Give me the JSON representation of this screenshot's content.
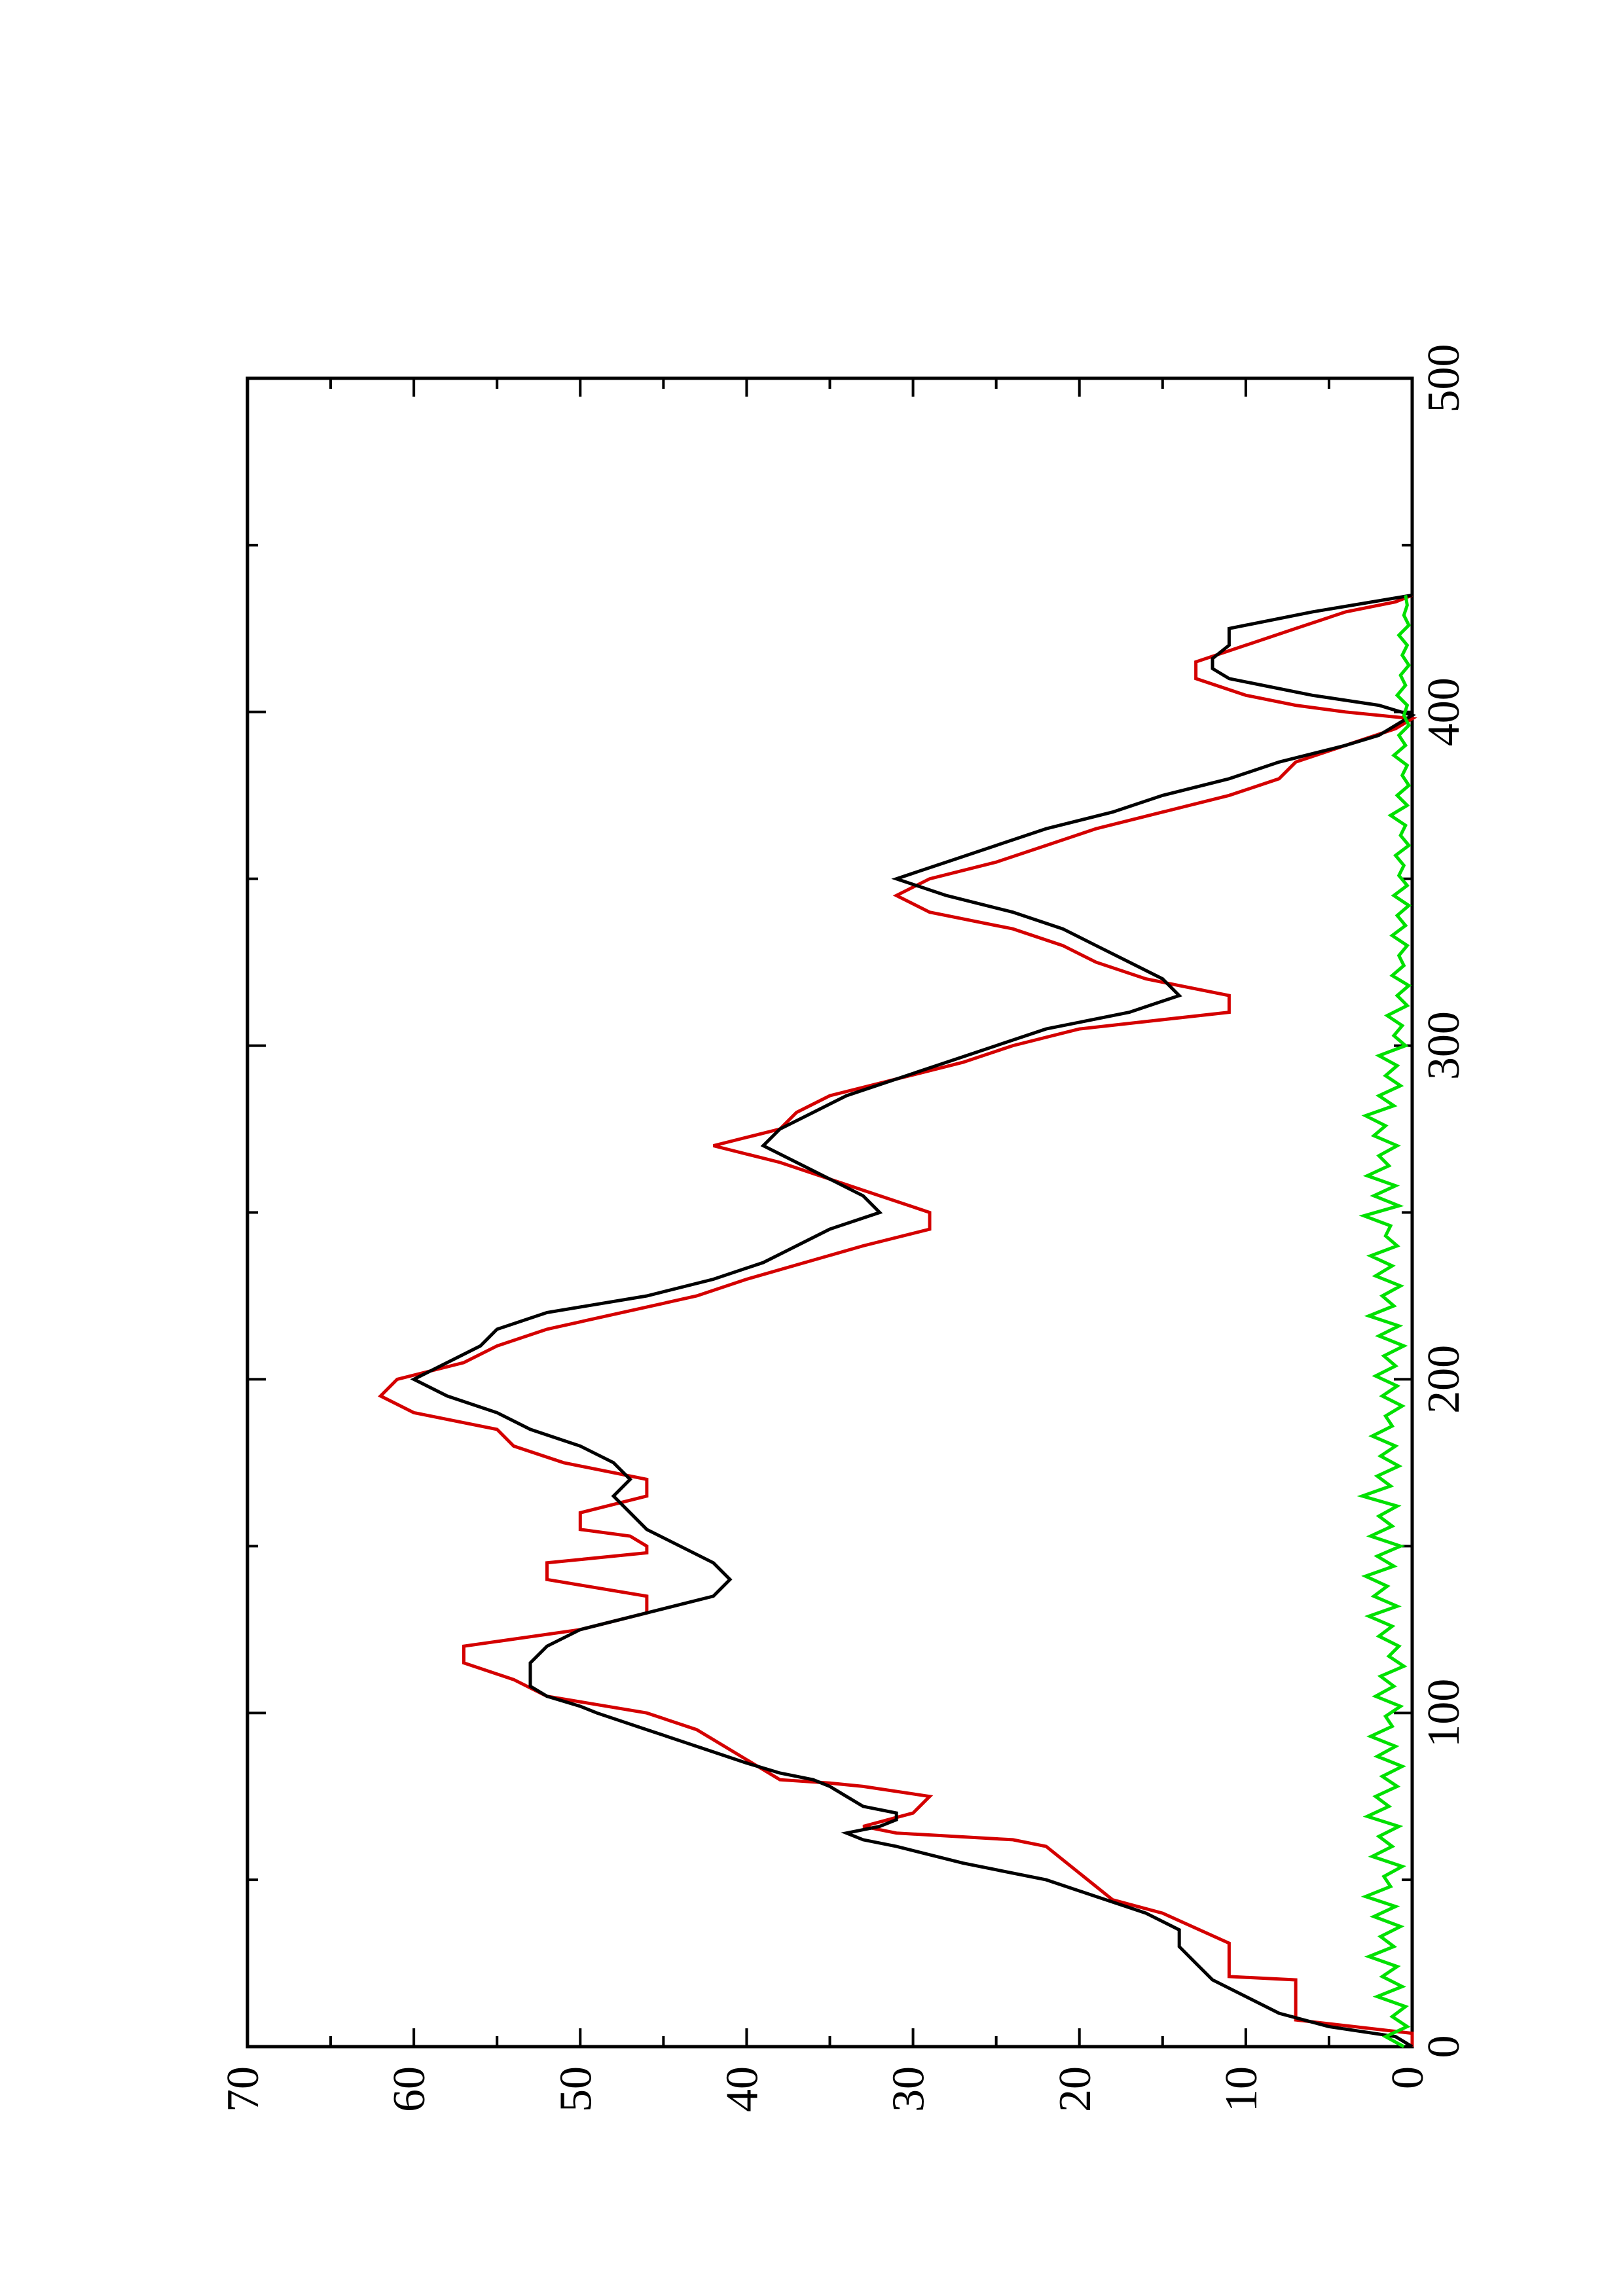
{
  "chart_data": {
    "type": "line",
    "title": "",
    "xlabel": "",
    "ylabel": "",
    "orientation": "rotated 90 degrees counter-clockwise (landscape plot on portrait page)",
    "xlim": [
      0,
      500
    ],
    "ylim": [
      0,
      70
    ],
    "x_ticks": [
      "0",
      "100",
      "200",
      "300",
      "400",
      "500"
    ],
    "x_minor_step": 50,
    "y_ticks": [
      "0",
      "10",
      "20",
      "30",
      "40",
      "50",
      "60",
      "70"
    ],
    "y_minor_step": 5,
    "grid": false,
    "legend": "none",
    "series": [
      {
        "color": "#d40000",
        "style": "step",
        "x": [
          0,
          4,
          8,
          10,
          20,
          21,
          30,
          31,
          40,
          44,
          60,
          62,
          64,
          66,
          70,
          75,
          78,
          79,
          80,
          95,
          100,
          105,
          110,
          115,
          120,
          125,
          130,
          135,
          140,
          145,
          148,
          150,
          153,
          155,
          160,
          165,
          170,
          175,
          180,
          185,
          190,
          195,
          200,
          205,
          210,
          215,
          225,
          230,
          240,
          245,
          250,
          255,
          260,
          265,
          270,
          275,
          280,
          285,
          290,
          295,
          300,
          305,
          310,
          315,
          320,
          325,
          330,
          335,
          340,
          345,
          350,
          355,
          360,
          365,
          370,
          375,
          380,
          385,
          390,
          395,
          398,
          400,
          402,
          405,
          410,
          415,
          420,
          425,
          430,
          433,
          435
        ],
        "y": [
          0,
          0,
          7,
          7,
          7,
          11,
          11,
          11,
          15,
          18,
          22,
          24,
          31,
          33,
          30,
          29,
          33,
          35,
          38,
          43,
          46,
          52,
          54,
          57,
          57,
          50,
          46,
          46,
          52,
          52,
          46,
          46,
          47,
          50,
          50,
          46,
          46,
          51,
          54,
          55,
          60,
          62,
          61,
          57,
          55,
          52,
          43,
          40,
          33,
          29,
          29,
          32,
          35,
          38,
          42,
          38,
          37,
          35,
          31,
          27,
          24,
          20,
          11,
          11,
          16,
          19,
          21,
          24,
          29,
          31,
          29,
          25,
          22,
          19,
          15,
          11,
          8,
          7,
          4,
          1,
          0,
          4,
          7,
          10,
          13,
          13,
          10,
          7,
          4,
          1,
          0
        ]
      },
      {
        "color": "#000000",
        "style": "line",
        "x": [
          0,
          3,
          6,
          10,
          15,
          20,
          25,
          30,
          35,
          40,
          45,
          50,
          55,
          60,
          62,
          64,
          66,
          68,
          70,
          72,
          75,
          78,
          80,
          82,
          85,
          90,
          95,
          100,
          102,
          105,
          108,
          110,
          115,
          120,
          125,
          130,
          135,
          140,
          145,
          150,
          155,
          160,
          165,
          170,
          175,
          180,
          185,
          190,
          195,
          200,
          205,
          210,
          215,
          220,
          225,
          230,
          235,
          240,
          245,
          250,
          255,
          260,
          265,
          270,
          275,
          280,
          285,
          290,
          295,
          300,
          305,
          310,
          315,
          320,
          325,
          330,
          335,
          340,
          345,
          350,
          355,
          360,
          365,
          370,
          375,
          380,
          385,
          390,
          393,
          396,
          399,
          402,
          405,
          408,
          410,
          413,
          416,
          420,
          425,
          430,
          435
        ],
        "y": [
          0,
          1,
          5,
          8,
          10,
          12,
          13,
          14,
          14,
          16,
          19,
          22,
          27,
          31,
          33,
          34,
          32,
          31,
          31,
          33,
          34,
          35,
          36,
          38,
          40,
          43,
          46,
          49,
          50,
          52,
          53,
          53,
          53,
          52,
          50,
          46,
          42,
          41,
          42,
          44,
          46,
          47,
          48,
          47,
          48,
          50,
          53,
          55,
          58,
          60,
          58,
          56,
          55,
          52,
          46,
          42,
          39,
          37,
          35,
          32,
          33,
          35,
          37,
          39,
          38,
          36,
          34,
          31,
          28,
          25,
          22,
          17,
          14,
          15,
          17,
          19,
          21,
          24,
          28,
          31,
          28,
          25,
          22,
          18,
          15,
          11,
          8,
          4,
          2,
          1,
          0,
          2,
          6,
          9,
          11,
          12,
          12,
          11,
          11,
          6,
          0
        ]
      },
      {
        "color": "#00e000",
        "style": "line-noise",
        "x": [
          0,
          3,
          6,
          9,
          12,
          15,
          18,
          21,
          24,
          27,
          30,
          33,
          36,
          39,
          42,
          45,
          48,
          51,
          54,
          57,
          60,
          63,
          66,
          69,
          72,
          75,
          78,
          81,
          84,
          87,
          90,
          93,
          96,
          99,
          102,
          105,
          108,
          111,
          114,
          117,
          120,
          123,
          126,
          129,
          132,
          135,
          138,
          141,
          144,
          147,
          150,
          153,
          156,
          159,
          162,
          165,
          168,
          171,
          174,
          177,
          180,
          183,
          186,
          189,
          192,
          195,
          198,
          201,
          204,
          207,
          210,
          213,
          216,
          219,
          222,
          225,
          228,
          231,
          234,
          237,
          240,
          243,
          246,
          249,
          252,
          255,
          258,
          261,
          264,
          267,
          270,
          273,
          276,
          279,
          282,
          285,
          288,
          291,
          294,
          297,
          300,
          303,
          306,
          309,
          312,
          315,
          318,
          321,
          324,
          327,
          330,
          333,
          336,
          339,
          342,
          345,
          348,
          351,
          354,
          357,
          360,
          363,
          366,
          369,
          372,
          375,
          378,
          381,
          384,
          387,
          390,
          393,
          396,
          399,
          402,
          405,
          408,
          411,
          414,
          417,
          420,
          423,
          426,
          429,
          432,
          435
        ],
        "y": [
          0.5,
          1.6,
          0.3,
          1.2,
          0.4,
          2.1,
          0.6,
          1.8,
          0.9,
          2.6,
          1.1,
          1.9,
          0.7,
          2.3,
          1.0,
          2.8,
          1.3,
          1.7,
          0.6,
          2.4,
          1.2,
          2.0,
          0.8,
          2.7,
          1.4,
          2.2,
          0.9,
          1.8,
          0.6,
          2.1,
          1.0,
          2.5,
          1.2,
          1.6,
          0.7,
          2.2,
          1.1,
          1.9,
          0.5,
          1.4,
          0.8,
          2.0,
          1.2,
          2.6,
          0.9,
          2.3,
          1.5,
          2.8,
          1.1,
          2.1,
          0.7,
          2.5,
          1.2,
          2.0,
          0.9,
          3.0,
          1.3,
          2.1,
          0.8,
          1.9,
          1.0,
          2.4,
          1.2,
          1.6,
          0.6,
          1.8,
          0.9,
          2.2,
          1.0,
          1.7,
          0.5,
          2.0,
          0.8,
          2.6,
          1.1,
          1.8,
          0.7,
          2.2,
          1.2,
          2.5,
          0.9,
          1.6,
          1.3,
          2.9,
          0.8,
          2.3,
          1.0,
          2.7,
          1.4,
          2.0,
          0.9,
          2.3,
          1.6,
          2.8,
          1.1,
          2.0,
          0.7,
          1.6,
          0.9,
          2.0,
          0.4,
          1.1,
          0.6,
          1.5,
          0.3,
          0.9,
          0.2,
          1.2,
          0.5,
          0.8,
          0.3,
          1.2,
          0.4,
          0.9,
          0.2,
          1.1,
          0.3,
          0.8,
          0.5,
          1.0,
          0.2,
          0.7,
          0.4,
          1.3,
          0.3,
          0.9,
          0.2,
          0.6,
          0.3,
          1.1,
          0.4,
          0.8,
          0.2,
          0.5,
          0.3,
          0.9,
          0.4,
          0.7,
          0.2,
          0.6,
          0.3,
          0.8,
          0.2,
          0.5,
          0.3,
          0.4
        ]
      }
    ]
  }
}
